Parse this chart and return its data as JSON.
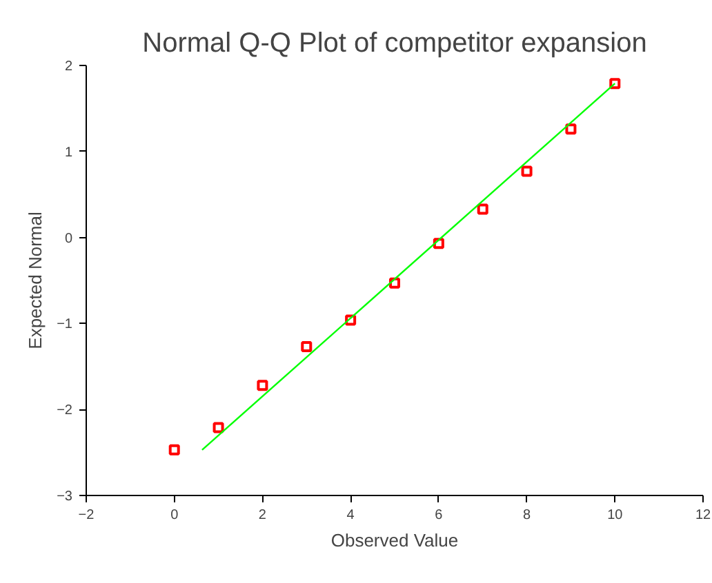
{
  "chart_data": {
    "type": "scatter",
    "title": "Normal Q-Q Plot of competitor expansion",
    "xlabel": "Observed Value",
    "ylabel": "Expected Normal",
    "x": [
      0,
      1,
      2,
      3,
      4,
      5,
      6,
      7,
      8,
      9,
      10
    ],
    "series": [
      {
        "color": "#ff0000",
        "marker": "square",
        "values": [
          -2.47,
          -2.21,
          -1.72,
          -1.27,
          -0.96,
          -0.53,
          -0.07,
          0.33,
          0.77,
          1.26,
          1.79
        ]
      },
      {
        "type": "line",
        "color": "#00ff00",
        "x": [
          0.63,
          10
        ],
        "values": [
          -2.47,
          1.79
        ]
      }
    ],
    "xlim": [
      -2,
      12
    ],
    "ylim": [
      -3,
      2
    ],
    "xticks": [
      -2,
      0,
      2,
      4,
      6,
      8,
      10,
      12
    ],
    "yticks": [
      -3,
      -2,
      -1,
      0,
      1,
      2
    ],
    "grid": false
  }
}
